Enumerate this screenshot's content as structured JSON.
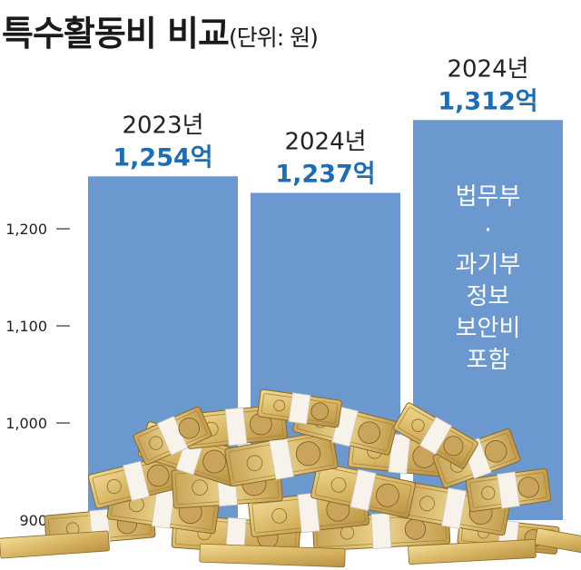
{
  "title": "특수활동비 비교",
  "unit": "(단위: 원)",
  "colors": {
    "bar": "#6b98cf",
    "value_label": "#1d6db6",
    "text": "#222222",
    "bar_text": "#ffffff"
  },
  "decoration": "banknote-bundles-image",
  "chart_data": {
    "type": "bar",
    "title": "특수활동비 비교",
    "subtitle": "(단위: 원)",
    "categories": [
      "2023년",
      "2024년",
      "2024년"
    ],
    "values": [
      1254,
      1237,
      1312
    ],
    "value_labels": [
      "1,254억",
      "1,237억",
      "1,312억"
    ],
    "ylim": [
      900,
      1330
    ],
    "yticks": [
      900,
      1000,
      1100,
      1200
    ],
    "ytick_labels": [
      "900",
      "1,000",
      "1,100",
      "1,200"
    ],
    "bar_annotation": [
      "법무부",
      "·",
      "과기부",
      "정보",
      "보안비",
      "포함"
    ],
    "annotated_bar_index": 2,
    "grid": false,
    "legend": "none"
  }
}
